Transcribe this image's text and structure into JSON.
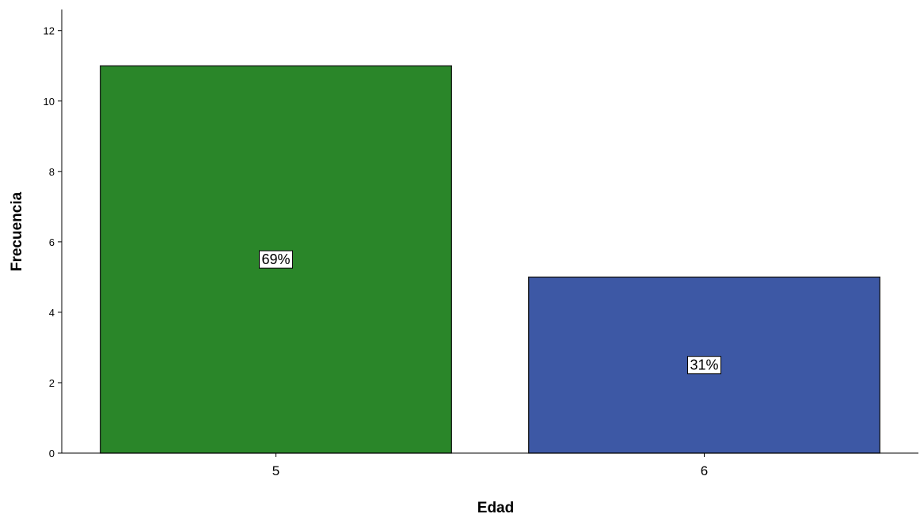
{
  "chart_data": {
    "type": "bar",
    "categories": [
      "5",
      "6"
    ],
    "values": [
      11,
      5
    ],
    "data_labels": [
      "69%",
      "31%"
    ],
    "colors": [
      "#2a8629",
      "#3d58a5"
    ],
    "xlabel": "Edad",
    "ylabel": "Frecuencia",
    "ylim": [
      0,
      12.6
    ],
    "yticks": [
      0,
      2,
      4,
      6,
      8,
      10,
      12
    ],
    "grid": false,
    "legend": "none"
  }
}
